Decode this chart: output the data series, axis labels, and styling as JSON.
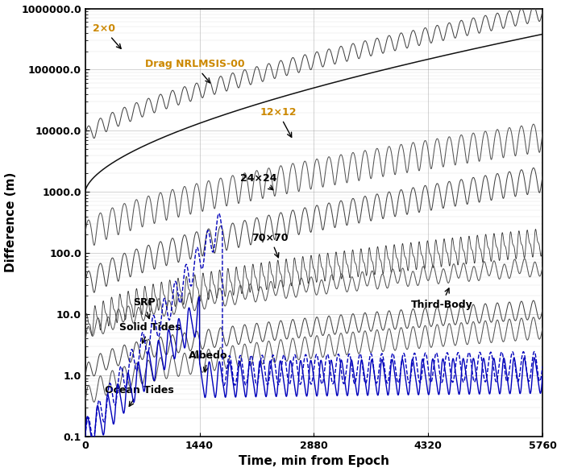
{
  "xlabel": "Time, min from Epoch",
  "ylabel": "Difference (m)",
  "xlim": [
    0,
    5760
  ],
  "ylim_log": [
    0.1,
    1000000.0
  ],
  "xticks": [
    0,
    1440,
    2880,
    4320,
    5760
  ],
  "background_color": "#ffffff",
  "grid_color": "#999999",
  "ytick_vals": [
    0.1,
    1.0,
    10.0,
    100.0,
    1000.0,
    10000.0,
    100000.0,
    1000000.0
  ],
  "ytick_labels": [
    "0.1",
    "1.0",
    "10.0",
    "100.0",
    "1000.0",
    "10000.0",
    "100000.0",
    "1000000.0"
  ],
  "annot_gold_color": "#cc8800",
  "annot_black_color": "#000000",
  "tick_label_color": "#000000",
  "axis_label_color": "#000000"
}
